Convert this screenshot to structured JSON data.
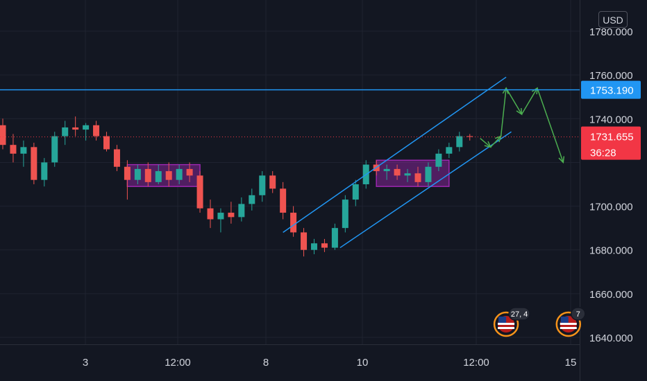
{
  "currency": "USD",
  "chart_data": {
    "type": "candlestick",
    "y_axis": {
      "ticks": [
        1640,
        1660,
        1680,
        1700,
        1720,
        1740,
        1760,
        1780
      ],
      "labels": [
        "1640.000",
        "1660.000",
        "1680.000",
        "1700.000",
        "",
        "1740.000",
        "1760.000",
        "1780.000"
      ]
    },
    "x_axis": {
      "labels": [
        "3",
        "12:00",
        "8",
        "10",
        "12:00",
        "15"
      ]
    },
    "horizontal_line": {
      "value": 1753.19,
      "label": "1753.190",
      "color": "#2196f3"
    },
    "last_price": {
      "value": 1731.655,
      "label": "1731.655",
      "countdown": "36:28",
      "color": "#f23645"
    },
    "consolidation_zones": [
      {
        "x_start": 12,
        "x_end": 19,
        "y_low": 1709,
        "y_high": 1719
      },
      {
        "x_start": 36,
        "x_end": 43,
        "y_low": 1709,
        "y_high": 1721
      }
    ],
    "channel_lines": [
      {
        "x1": 27,
        "y1": 1688,
        "x2": 48.5,
        "y2": 1759
      },
      {
        "x1": 32.5,
        "y1": 1681,
        "x2": 49,
        "y2": 1734
      }
    ],
    "projection_path": [
      {
        "x": 46,
        "y": 1731
      },
      {
        "x": 47,
        "y": 1727
      },
      {
        "x": 48,
        "y": 1732
      },
      {
        "x": 48.5,
        "y": 1754
      },
      {
        "x": 50,
        "y": 1742
      },
      {
        "x": 51.5,
        "y": 1754
      },
      {
        "x": 54,
        "y": 1720
      }
    ],
    "events": [
      {
        "x": 48.5,
        "count": "27, 4",
        "flag": "US"
      },
      {
        "x": 54.5,
        "count": "7",
        "flag": "US"
      }
    ],
    "colors": {
      "up": "#26a69a",
      "down": "#ef5350",
      "zone": "#9c27b0",
      "channel": "#2196f3",
      "projection": "#4caf50"
    },
    "candles": [
      [
        1737,
        1740,
        1726,
        1728
      ],
      [
        1728,
        1733,
        1720,
        1724
      ],
      [
        1724,
        1730,
        1718,
        1727
      ],
      [
        1727,
        1729,
        1710,
        1712
      ],
      [
        1712,
        1722,
        1709,
        1720
      ],
      [
        1720,
        1734,
        1718,
        1732
      ],
      [
        1732,
        1739,
        1728,
        1736
      ],
      [
        1736,
        1741,
        1732,
        1735
      ],
      [
        1735,
        1738,
        1730,
        1737
      ],
      [
        1737,
        1739,
        1730,
        1732
      ],
      [
        1732,
        1734,
        1725,
        1726
      ],
      [
        1726,
        1728,
        1716,
        1718
      ],
      [
        1718,
        1721,
        1703,
        1712
      ],
      [
        1712,
        1719,
        1710,
        1717
      ],
      [
        1717,
        1720,
        1709,
        1711
      ],
      [
        1711,
        1719,
        1710,
        1716
      ],
      [
        1716,
        1720,
        1709,
        1712
      ],
      [
        1712,
        1719,
        1710,
        1717
      ],
      [
        1717,
        1720,
        1711,
        1714
      ],
      [
        1714,
        1716,
        1697,
        1699
      ],
      [
        1699,
        1703,
        1690,
        1694
      ],
      [
        1694,
        1699,
        1688,
        1697
      ],
      [
        1697,
        1702,
        1692,
        1695
      ],
      [
        1695,
        1704,
        1693,
        1701
      ],
      [
        1701,
        1708,
        1698,
        1705
      ],
      [
        1705,
        1716,
        1702,
        1714
      ],
      [
        1714,
        1716,
        1706,
        1708
      ],
      [
        1708,
        1711,
        1694,
        1697
      ],
      [
        1697,
        1700,
        1686,
        1688
      ],
      [
        1688,
        1690,
        1677,
        1680
      ],
      [
        1680,
        1685,
        1678,
        1683
      ],
      [
        1683,
        1685,
        1679,
        1681
      ],
      [
        1681,
        1692,
        1680,
        1690
      ],
      [
        1690,
        1705,
        1688,
        1703
      ],
      [
        1703,
        1712,
        1700,
        1710
      ],
      [
        1710,
        1721,
        1708,
        1719
      ],
      [
        1719,
        1721,
        1714,
        1716
      ],
      [
        1716,
        1719,
        1712,
        1717
      ],
      [
        1717,
        1719,
        1712,
        1714
      ],
      [
        1714,
        1717,
        1711,
        1715
      ],
      [
        1715,
        1718,
        1709,
        1711
      ],
      [
        1711,
        1720,
        1709,
        1718
      ],
      [
        1718,
        1726,
        1716,
        1724
      ],
      [
        1724,
        1729,
        1722,
        1727
      ],
      [
        1727,
        1734,
        1725,
        1732
      ],
      [
        1732,
        1733,
        1730,
        1731.655
      ]
    ]
  }
}
